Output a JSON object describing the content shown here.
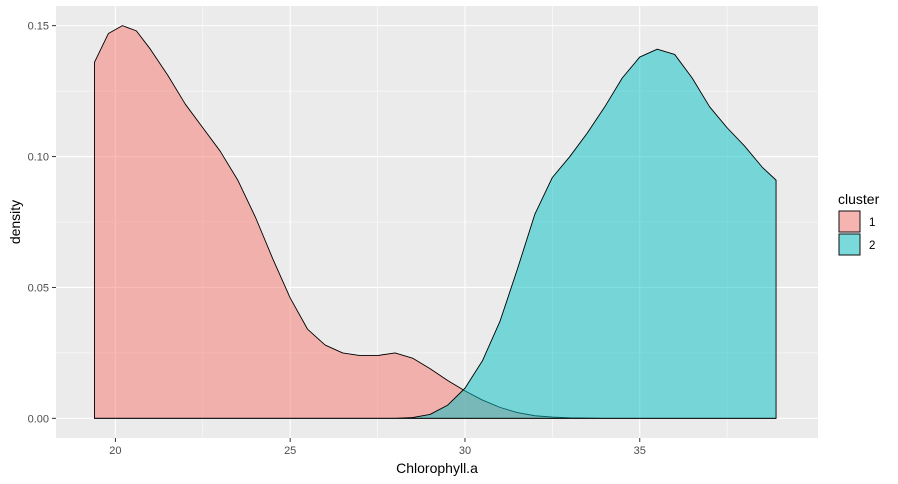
{
  "chart_data": {
    "type": "area",
    "xlabel": "Chlorophyll.a",
    "ylabel": "density",
    "xlim": [
      18.3,
      40.1
    ],
    "ylim": [
      -0.0075,
      0.1575
    ],
    "x_ticks": [
      20,
      25,
      30,
      35
    ],
    "x_tick_labels": [
      "20",
      "25",
      "30",
      "35"
    ],
    "y_ticks": [
      0.0,
      0.05,
      0.1,
      0.15
    ],
    "y_tick_labels": [
      "0.00",
      "0.05",
      "0.10",
      "0.15"
    ],
    "grid": true,
    "legend": {
      "title": "cluster",
      "placement": "right"
    },
    "series": [
      {
        "name": "1",
        "color": "#F8766D",
        "x": [
          19.4,
          19.8,
          20.2,
          20.6,
          21.0,
          21.5,
          22.0,
          22.5,
          23.0,
          23.5,
          24.0,
          24.5,
          25.0,
          25.5,
          26.0,
          26.5,
          27.0,
          27.5,
          28.0,
          28.5,
          29.0,
          29.5,
          30.0,
          30.5,
          31.0,
          31.5,
          32.0,
          32.5,
          33.0,
          33.5,
          34.0,
          35.0,
          36.0,
          37.0,
          38.0,
          38.9
        ],
        "y": [
          0.136,
          0.147,
          0.15,
          0.148,
          0.141,
          0.131,
          0.12,
          0.111,
          0.102,
          0.091,
          0.077,
          0.061,
          0.046,
          0.034,
          0.028,
          0.025,
          0.024,
          0.024,
          0.025,
          0.023,
          0.019,
          0.0145,
          0.0105,
          0.007,
          0.0042,
          0.0022,
          0.001,
          0.0005,
          0.0002,
          0.0001,
          0.0,
          0.0,
          0.0,
          0.0,
          0.0,
          0.0
        ]
      },
      {
        "name": "2",
        "color": "#00BFC4",
        "x": [
          19.4,
          22.0,
          25.0,
          27.0,
          28.0,
          28.5,
          29.0,
          29.5,
          30.0,
          30.5,
          31.0,
          31.5,
          32.0,
          32.5,
          33.0,
          33.5,
          34.0,
          34.5,
          35.0,
          35.5,
          36.0,
          36.5,
          37.0,
          37.5,
          38.0,
          38.5,
          38.9
        ],
        "y": [
          0.0,
          0.0,
          0.0,
          0.0,
          0.0,
          0.0003,
          0.0015,
          0.005,
          0.0115,
          0.022,
          0.037,
          0.057,
          0.078,
          0.092,
          0.1,
          0.109,
          0.119,
          0.13,
          0.138,
          0.141,
          0.139,
          0.13,
          0.119,
          0.111,
          0.104,
          0.096,
          0.091
        ]
      }
    ]
  }
}
